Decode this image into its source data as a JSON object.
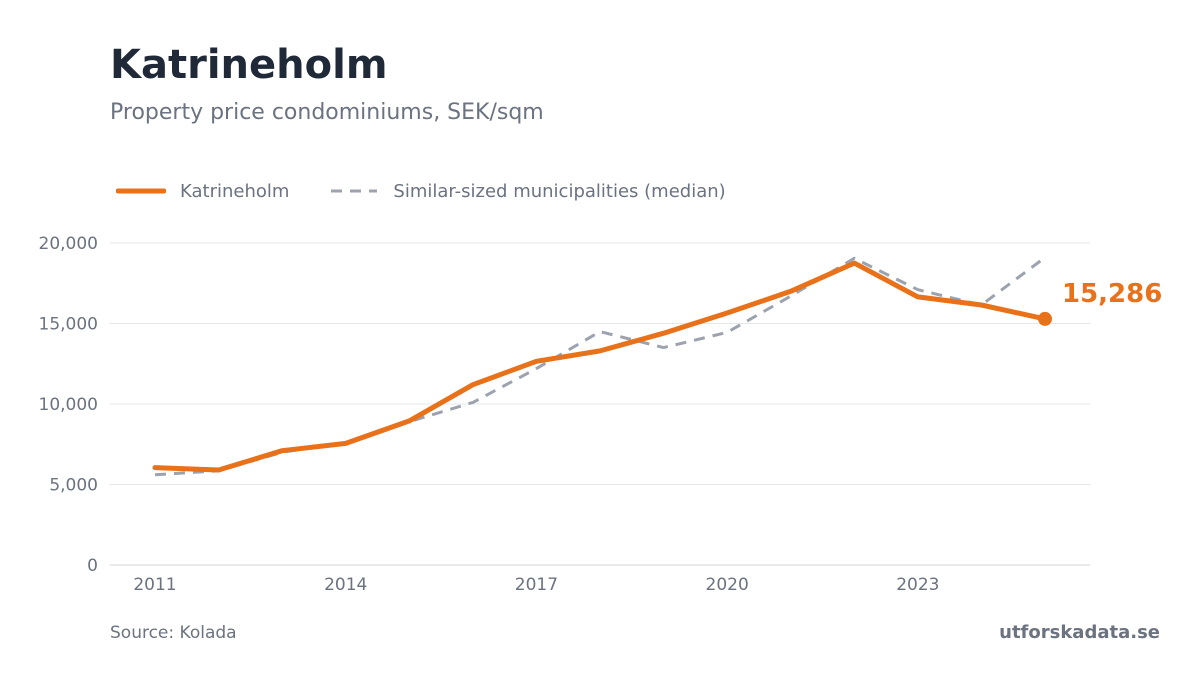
{
  "header": {
    "title": "Katrineholm",
    "subtitle": "Property price condominiums, SEK/sqm"
  },
  "footer": {
    "source": "Source: Kolada",
    "brand": "utforskadata.se"
  },
  "colors": {
    "primary": "#e8711a",
    "comparison": "#9ca3af",
    "grid": "#e5e7eb",
    "text": "#6b7280",
    "title": "#1f2937"
  },
  "chart_data": {
    "type": "line",
    "title": "Katrineholm",
    "subtitle": "Property price condominiums, SEK/sqm",
    "x": [
      2011,
      2012,
      2013,
      2014,
      2015,
      2016,
      2017,
      2018,
      2019,
      2020,
      2021,
      2022,
      2023,
      2024,
      2025
    ],
    "x_ticks": [
      "2011",
      "2014",
      "2017",
      "2020",
      "2023"
    ],
    "y_ticks": [
      "0",
      "5,000",
      "10,000",
      "15,000",
      "20,000"
    ],
    "ylim": [
      0,
      20000
    ],
    "grid": true,
    "legend_position": "top-left",
    "series": [
      {
        "name": "Katrineholm",
        "style": "solid",
        "values": [
          6050,
          5900,
          7100,
          7550,
          8950,
          11200,
          12650,
          13300,
          14400,
          15650,
          17000,
          18750,
          16650,
          16150,
          15286
        ]
      },
      {
        "name": "Similar-sized municipalities (median)",
        "style": "dashed",
        "values": [
          5600,
          5850,
          7000,
          7600,
          8900,
          10100,
          12200,
          14500,
          13500,
          14450,
          16700,
          19050,
          17100,
          16150,
          19100
        ]
      }
    ],
    "end_label": "15,286"
  }
}
